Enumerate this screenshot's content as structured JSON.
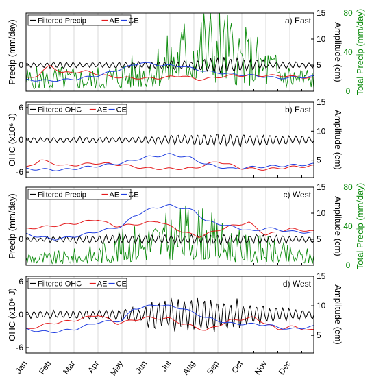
{
  "months": [
    "Jan",
    "Feb",
    "Mar",
    "Apr",
    "May",
    "Jun",
    "Jul",
    "Aug",
    "Sep",
    "Oct",
    "Nov",
    "Dec"
  ],
  "colors": {
    "black": "#000000",
    "red": "#e41a1c",
    "blue": "#1f3de0",
    "green": "#0a8a0a"
  },
  "chart_data": [
    {
      "type": "line",
      "panel_label": "a) East",
      "ylabel_left": "Precip (mm/day)",
      "ylabel_right": "Amplitude (cm)",
      "ylabel_right2": "Total Precip (mm/day)",
      "left_ticks": [
        "0"
      ],
      "left_tick_values": [
        0
      ],
      "left_lim": [
        -3,
        6
      ],
      "right_ticks": [
        "5",
        "10",
        "15"
      ],
      "right_tick_values": [
        5,
        10,
        15
      ],
      "right_lim": [
        0,
        15
      ],
      "right2_ticks": [
        "0",
        "40",
        "80"
      ],
      "right2_tick_values": [
        0,
        40,
        80
      ],
      "right2_lim": [
        0,
        80
      ],
      "legend": [
        "Filtered Precip",
        "AE",
        "CE"
      ],
      "series": [
        {
          "name": "Filtered Precip",
          "axis": "left",
          "pattern": "osc",
          "base": 0,
          "amp": [
            0.3,
            0.4,
            0.3,
            0.4,
            0.4,
            0.5,
            0.6,
            0.9,
            1.0,
            0.7,
            0.4,
            0.4
          ],
          "seed": 11
        },
        {
          "name": "AE",
          "axis": "right",
          "keys": [
            [
              0,
              2.5
            ],
            [
              0.5,
              3.0
            ],
            [
              1.0,
              5.0
            ],
            [
              1.5,
              3.5
            ],
            [
              2.5,
              3.8
            ],
            [
              3.5,
              2.8
            ],
            [
              4.5,
              2.5
            ],
            [
              5.5,
              2.5
            ],
            [
              6.5,
              3.0
            ],
            [
              7.2,
              2.2
            ],
            [
              8.5,
              3.0
            ],
            [
              9.5,
              3.0
            ],
            [
              10.5,
              3.0
            ],
            [
              12,
              2.5
            ]
          ]
        },
        {
          "name": "CE",
          "axis": "right",
          "keys": [
            [
              0,
              2.2
            ],
            [
              1,
              2.0
            ],
            [
              2,
              2.3
            ],
            [
              3,
              3.0
            ],
            [
              4,
              4.3
            ],
            [
              4.8,
              5.5
            ],
            [
              5.6,
              5.0
            ],
            [
              6.5,
              4.8
            ],
            [
              7.5,
              3.8
            ],
            [
              8.5,
              3.3
            ],
            [
              9.5,
              3.0
            ],
            [
              10.5,
              2.5
            ],
            [
              12,
              2.8
            ]
          ]
        },
        {
          "name": "Total Precip",
          "axis": "right2",
          "pattern": "precip",
          "env": [
            [
              0,
              15
            ],
            [
              3,
              15
            ],
            [
              4.5,
              22
            ],
            [
              6,
              35
            ],
            [
              7,
              55
            ],
            [
              8,
              55
            ],
            [
              9,
              40
            ],
            [
              10,
              30
            ],
            [
              11,
              18
            ],
            [
              12,
              15
            ]
          ],
          "seed": 5
        }
      ]
    },
    {
      "type": "line",
      "panel_label": "b) East",
      "ylabel_left": "OHC (x10⁶ J)",
      "ylabel_right": "Amplitude (cm)",
      "left_ticks": [
        "6",
        "0",
        "-6"
      ],
      "left_tick_values": [
        6,
        0,
        -6
      ],
      "left_lim": [
        -7,
        7
      ],
      "right_ticks": [
        "5",
        "10",
        "15"
      ],
      "right_tick_values": [
        5,
        10,
        15
      ],
      "right_lim": [
        2,
        15
      ],
      "legend": [
        "Filtered OHC",
        "AE",
        "CE"
      ],
      "series": [
        {
          "name": "Filtered OHC",
          "axis": "left",
          "pattern": "osc",
          "base": 0,
          "amp": [
            0.5,
            0.5,
            0.6,
            0.6,
            0.6,
            0.8,
            1.0,
            1.3,
            1.3,
            1.1,
            1.0,
            0.8
          ],
          "seed": 21
        },
        {
          "name": "AE",
          "axis": "right",
          "keys": [
            [
              0,
              3.7
            ],
            [
              0.6,
              5.0
            ],
            [
              1.0,
              4.6
            ],
            [
              1.6,
              4.0
            ],
            [
              3,
              4.5
            ],
            [
              4,
              4.2
            ],
            [
              5,
              3.6
            ],
            [
              6,
              3.5
            ],
            [
              7,
              3.6
            ],
            [
              8,
              4.8
            ],
            [
              9,
              3.6
            ],
            [
              10,
              3.4
            ],
            [
              11,
              3.8
            ],
            [
              12,
              4.0
            ]
          ]
        },
        {
          "name": "CE",
          "axis": "right",
          "keys": [
            [
              0,
              3.5
            ],
            [
              1.5,
              3.3
            ],
            [
              3,
              4.0
            ],
            [
              4,
              4.5
            ],
            [
              5,
              5.5
            ],
            [
              6,
              6.0
            ],
            [
              6.8,
              5.5
            ],
            [
              7.5,
              4.3
            ],
            [
              8.5,
              3.5
            ],
            [
              9.5,
              3.8
            ],
            [
              10.5,
              4.0
            ],
            [
              12,
              4.3
            ]
          ]
        }
      ]
    },
    {
      "type": "line",
      "panel_label": "c) West",
      "ylabel_left": "Precip (mm/day)",
      "ylabel_right": "Amplitude (cm)",
      "ylabel_right2": "Total Precip (mm/day)",
      "left_ticks": [
        "0"
      ],
      "left_tick_values": [
        0
      ],
      "left_lim": [
        -3,
        6
      ],
      "right_ticks": [
        "5",
        "10",
        "15"
      ],
      "right_tick_values": [
        5,
        10,
        15
      ],
      "right_lim": [
        0,
        15
      ],
      "right2_ticks": [
        "0",
        "40",
        "80"
      ],
      "right2_tick_values": [
        0,
        40,
        80
      ],
      "right2_lim": [
        0,
        80
      ],
      "legend": [
        "Filtered Precip",
        "AE",
        "CE"
      ],
      "series": [
        {
          "name": "Filtered Precip",
          "axis": "left",
          "pattern": "osc",
          "base": 0,
          "amp": [
            0.3,
            0.4,
            0.5,
            0.6,
            0.6,
            0.6,
            0.6,
            0.6,
            0.6,
            0.6,
            0.5,
            0.4
          ],
          "seed": 31
        },
        {
          "name": "AE",
          "axis": "right",
          "keys": [
            [
              0,
              7.0
            ],
            [
              1,
              7.5
            ],
            [
              2,
              8.0
            ],
            [
              3,
              8.8
            ],
            [
              3.7,
              7.5
            ],
            [
              4.5,
              7.8
            ],
            [
              5.5,
              8.5
            ],
            [
              6.5,
              6.5
            ],
            [
              7.2,
              5.5
            ],
            [
              8.5,
              7.5
            ],
            [
              9.3,
              8.2
            ],
            [
              10,
              5.8
            ],
            [
              11,
              7.0
            ],
            [
              12,
              6.5
            ]
          ]
        },
        {
          "name": "CE",
          "axis": "right",
          "keys": [
            [
              0,
              6.0
            ],
            [
              0.5,
              5.5
            ],
            [
              1.2,
              5.0
            ],
            [
              2,
              5.5
            ],
            [
              3,
              6.5
            ],
            [
              4,
              7.5
            ],
            [
              4.5,
              9.5
            ],
            [
              5.3,
              11.0
            ],
            [
              6,
              11.5
            ],
            [
              7,
              10.5
            ],
            [
              7.5,
              8.5
            ],
            [
              8.5,
              7.5
            ],
            [
              9.5,
              6.5
            ],
            [
              10,
              7.2
            ],
            [
              11,
              6.5
            ],
            [
              12,
              6.2
            ]
          ]
        },
        {
          "name": "Total Precip",
          "axis": "right2",
          "pattern": "precip",
          "env": [
            [
              0,
              10
            ],
            [
              1,
              8
            ],
            [
              2,
              10
            ],
            [
              3,
              14
            ],
            [
              4,
              22
            ],
            [
              5,
              30
            ],
            [
              6,
              32
            ],
            [
              7,
              40
            ],
            [
              8,
              28
            ],
            [
              9,
              20
            ],
            [
              10,
              18
            ],
            [
              11,
              12
            ],
            [
              12,
              10
            ]
          ],
          "seed": 9
        }
      ]
    },
    {
      "type": "line",
      "panel_label": "d) West",
      "ylabel_left": "OHC (x10⁶ J)",
      "ylabel_right": "Amplitude (cm)",
      "left_ticks": [
        "6",
        "0",
        "-6"
      ],
      "left_tick_values": [
        6,
        0,
        -6
      ],
      "left_lim": [
        -7,
        7
      ],
      "right_ticks": [
        "5",
        "10",
        "15"
      ],
      "right_tick_values": [
        5,
        10,
        15
      ],
      "right_lim": [
        2,
        15
      ],
      "legend": [
        "Filtered OHC",
        "AE",
        "CE"
      ],
      "series": [
        {
          "name": "Filtered OHC",
          "axis": "left",
          "pattern": "osc",
          "base": 0,
          "amp": [
            0.8,
            0.8,
            0.9,
            1.0,
            1.5,
            3.0,
            3.5,
            3.5,
            3.0,
            2.0,
            1.5,
            1.0
          ],
          "seed": 41
        },
        {
          "name": "AE",
          "axis": "right",
          "keys": [
            [
              0,
              6.0
            ],
            [
              1,
              7.0
            ],
            [
              2,
              7.5
            ],
            [
              3,
              8.5
            ],
            [
              3.8,
              7.0
            ],
            [
              5,
              8.0
            ],
            [
              6,
              7.8
            ],
            [
              6.5,
              7.0
            ],
            [
              7,
              6.5
            ],
            [
              7.5,
              5.8
            ],
            [
              8.5,
              7.5
            ],
            [
              9.5,
              8.0
            ],
            [
              10,
              7.0
            ],
            [
              10.5,
              6.0
            ],
            [
              11,
              6.5
            ],
            [
              12,
              5.8
            ]
          ]
        },
        {
          "name": "CE",
          "axis": "right",
          "keys": [
            [
              0,
              6.0
            ],
            [
              1,
              5.5
            ],
            [
              2,
              6.0
            ],
            [
              3,
              7.2
            ],
            [
              4,
              7.5
            ],
            [
              4.5,
              9.5
            ],
            [
              5.5,
              10.2
            ],
            [
              6.5,
              9.6
            ],
            [
              7.5,
              8.0
            ],
            [
              8.5,
              7.0
            ],
            [
              10,
              6.8
            ],
            [
              11,
              6.0
            ],
            [
              12,
              6.5
            ]
          ]
        }
      ]
    }
  ]
}
